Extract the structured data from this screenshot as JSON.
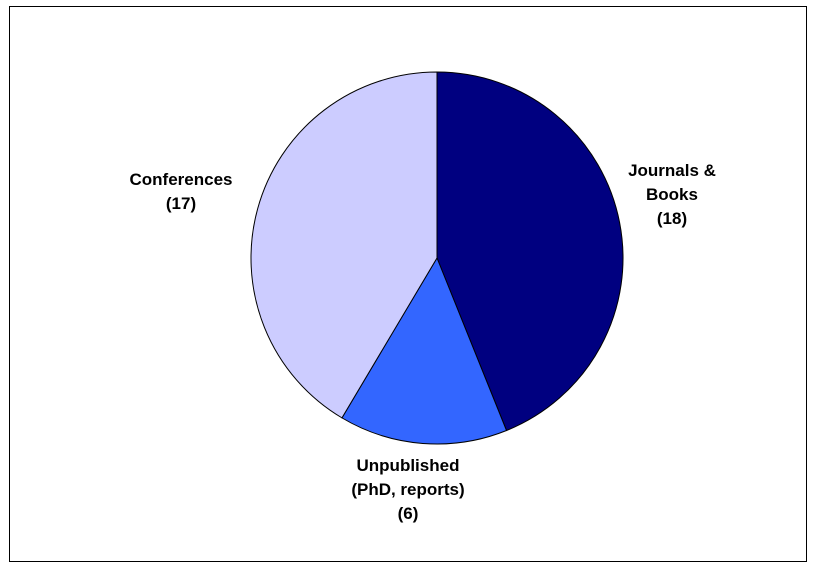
{
  "chart_data": {
    "type": "pie",
    "title": "",
    "start": "12 o'clock",
    "direction": "clockwise",
    "slices": [
      {
        "label_lines": [
          "Journals &",
          "Books",
          "(18)"
        ],
        "value": 18,
        "color": "#000080"
      },
      {
        "label_lines": [
          "Unpublished",
          "(PhD, reports)",
          "(6)"
        ],
        "value": 6,
        "color": "#3366ff"
      },
      {
        "label_lines": [
          "Conferences",
          "(17)"
        ],
        "value": 17,
        "color": "#ccccff"
      }
    ]
  }
}
